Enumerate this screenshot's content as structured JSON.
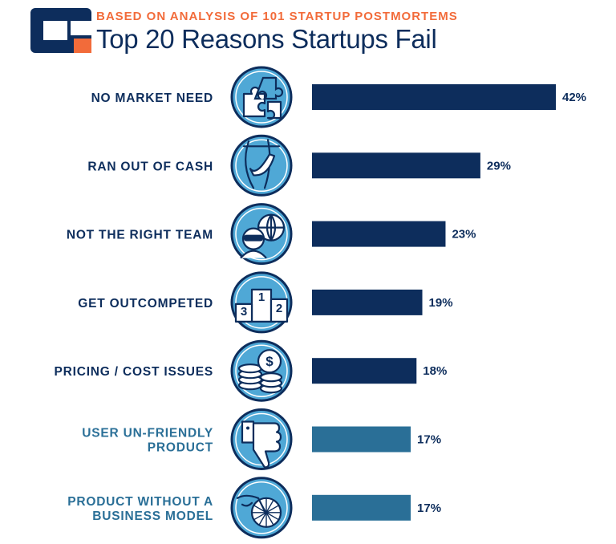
{
  "header": {
    "kicker": "BASED ON ANALYSIS OF 101 STARTUP POSTMORTEMS",
    "title": "Top 20 Reasons Startups Fail"
  },
  "colors": {
    "dark_navy": "#0d2d5c",
    "steel_blue": "#2a6f97",
    "icon_blue": "#4fa8d6",
    "orange": "#f26b3a"
  },
  "chart_data": {
    "type": "bar",
    "orientation": "horizontal",
    "title": "Top 20 Reasons Startups Fail",
    "xlim": [
      0,
      42
    ],
    "grid": false,
    "categories": [
      [
        "NO MARKET NEED"
      ],
      [
        "RAN OUT OF CASH"
      ],
      [
        "NOT THE RIGHT TEAM"
      ],
      [
        "GET OUTCOMPETED"
      ],
      [
        "PRICING / COST ISSUES"
      ],
      [
        "USER UN-FRIENDLY",
        "PRODUCT"
      ],
      [
        "PRODUCT WITHOUT A",
        "BUSINESS MODEL"
      ]
    ],
    "values": [
      42,
      29,
      23,
      19,
      18,
      17,
      17
    ],
    "value_labels": [
      "42%",
      "29%",
      "23%",
      "19%",
      "18%",
      "17%",
      "17%"
    ],
    "bar_colors": [
      "#0d2d5c",
      "#0d2d5c",
      "#0d2d5c",
      "#0d2d5c",
      "#0d2d5c",
      "#2a6f97",
      "#2a6f97"
    ],
    "icons": [
      "puzzle-icon",
      "empty-pocket-icon",
      "team-icon",
      "podium-icon",
      "coins-icon",
      "thumbs-down-icon",
      "unicycle-icon"
    ],
    "podium_digits": [
      "1",
      "2",
      "3"
    ]
  }
}
